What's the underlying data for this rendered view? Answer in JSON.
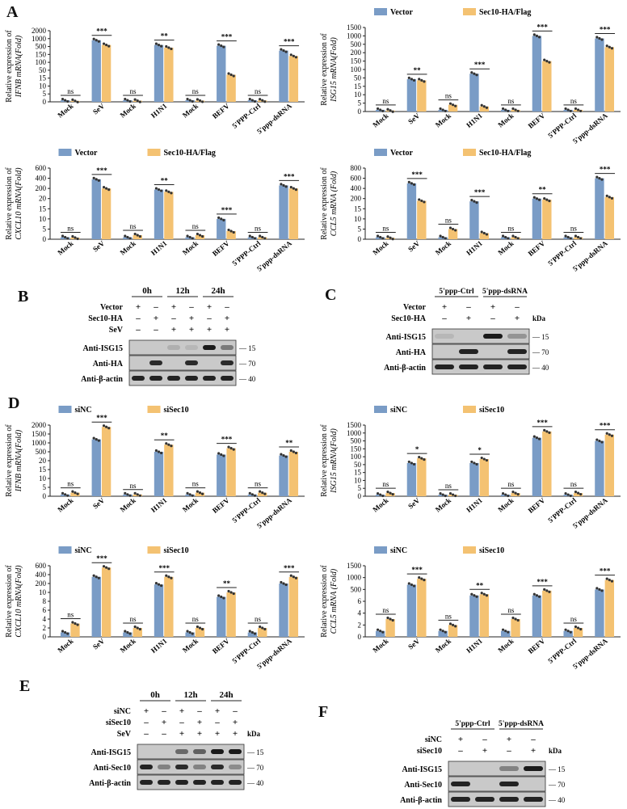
{
  "colors": {
    "blue": "#7a9cc6",
    "orange": "#f4c272",
    "axis": "#222",
    "band": "#1a1a1a",
    "blot": "#c9c9c9"
  },
  "panel_letters": {
    "A": "A",
    "B": "B",
    "C": "C",
    "D": "D",
    "E": "E",
    "F": "F"
  },
  "legend_A": {
    "s1": "Vector",
    "s2": "Sec10-HA/Flag"
  },
  "legend_D": {
    "s1": "siNC",
    "s2": "siSec10"
  },
  "categories": [
    "Mock",
    "SeV",
    "Mock",
    "H1N1",
    "Mock",
    "BEFV",
    "5'PPP-Ctrl",
    "5'ppp-dsRNA"
  ],
  "categories_A_isg15": [
    "Mock",
    "SeV",
    "Mock",
    "H1N1",
    "Mock",
    "BEFV",
    "5'PPP-Ctrl",
    "5'ppp-dsRNA"
  ],
  "chart_data": [
    {
      "id": "A1",
      "type": "bar",
      "series": [
        {
          "name": "Vector",
          "values": [
            1,
            900,
            1,
            600,
            1,
            550,
            1,
            320
          ]
        },
        {
          "name": "Sec10-HA/Flag",
          "values": [
            0.6,
            600,
            0.7,
            450,
            0.8,
            30,
            0.9,
            140
          ]
        }
      ],
      "sig": [
        "ns",
        "***",
        "ns",
        "**",
        "ns",
        "***",
        "ns",
        "***"
      ],
      "ylabel1": "Relative expression of",
      "ylabel2": "IFNB mRNA(Fold)",
      "ticks": [
        "0",
        "5",
        "10",
        "15",
        "50",
        "100",
        "150",
        "500",
        "1000",
        "2000"
      ]
    },
    {
      "id": "A2",
      "type": "bar",
      "series": [
        {
          "name": "Vector",
          "values": [
            1,
            45,
            1,
            75,
            1,
            1000,
            1,
            850
          ]
        },
        {
          "name": "Sec10-HA/Flag",
          "values": [
            0.6,
            40,
            4,
            3,
            1,
            150,
            1,
            400
          ]
        }
      ],
      "sig": [
        "ns",
        "**",
        "ns",
        "***",
        "ns",
        "***",
        "ns",
        "***"
      ],
      "ylabel1": "Relative expression of",
      "ylabel2": "ISG15 mRNA(Fold)",
      "ticks": [
        "0",
        "5",
        "10",
        "15",
        "50",
        "100",
        "150",
        "200",
        "500",
        "1000",
        "1500"
      ]
    },
    {
      "id": "A3",
      "type": "bar",
      "series": [
        {
          "name": "Vector",
          "values": [
            1,
            380,
            1,
            180,
            1,
            10,
            1,
            260
          ]
        },
        {
          "name": "Sec10-HA/Flag",
          "values": [
            0.8,
            200,
            2,
            140,
            2,
            4,
            1,
            200
          ]
        }
      ],
      "sig": [
        "ns",
        "***",
        "ns",
        "**",
        "ns",
        "***",
        "ns",
        "***"
      ],
      "ylabel1": "Relative expression of",
      "ylabel2": "CXCL10 mRNA(Fold)",
      "ticks": [
        "0",
        "5",
        "10",
        "15",
        "20",
        "200",
        "400",
        "600"
      ]
    },
    {
      "id": "A4",
      "type": "bar",
      "series": [
        {
          "name": "Vector",
          "values": [
            1,
            500,
            1,
            150,
            1,
            200,
            1,
            600
          ]
        },
        {
          "name": "Sec10-HA/Flag",
          "values": [
            0.7,
            160,
            5,
            3,
            1,
            180,
            1,
            230
          ]
        }
      ],
      "sig": [
        "ns",
        "***",
        "ns",
        "***",
        "ns",
        "**",
        "ns",
        "***"
      ],
      "ylabel1": "Relative expression of",
      "ylabel2": "CCL5 mRNA (Fold)",
      "ticks": [
        "0",
        "5",
        "10",
        "15",
        "200",
        "400",
        "600",
        "800"
      ]
    },
    {
      "id": "D1",
      "type": "bar",
      "series": [
        {
          "name": "siNC",
          "values": [
            1,
            1200,
            1,
            500,
            1,
            350,
            1,
            300
          ]
        },
        {
          "name": "siSec10",
          "values": [
            2,
            1900,
            1,
            900,
            2,
            700,
            2,
            500
          ]
        }
      ],
      "sig": [
        "ns",
        "***",
        "ns",
        "**",
        "ns",
        "***",
        "ns",
        "**"
      ],
      "ylabel1": "Relative expression of",
      "ylabel2": "IFNB mRNA(Fold)",
      "ticks": [
        "0",
        "5",
        "10",
        "15",
        "20",
        "500",
        "1000",
        "1500",
        "2000"
      ]
    },
    {
      "id": "D2",
      "type": "bar",
      "series": [
        {
          "name": "siNC",
          "values": [
            1,
            60,
            1,
            60,
            1,
            700,
            1,
            500
          ]
        },
        {
          "name": "siSec10",
          "values": [
            2,
            90,
            1,
            85,
            2,
            1100,
            2,
            900
          ]
        }
      ],
      "sig": [
        "ns",
        "*",
        "ns",
        "*",
        "ns",
        "***",
        "ns",
        "***"
      ],
      "ylabel1": "Relative expression of",
      "ylabel2": "ISG15 mRNA(Fold)",
      "ticks": [
        "0",
        "5",
        "10",
        "15",
        "50",
        "100",
        "150",
        "500",
        "1000",
        "1500"
      ]
    },
    {
      "id": "D3",
      "type": "bar",
      "series": [
        {
          "name": "siNC",
          "values": [
            1,
            350,
            1,
            180,
            1,
            9,
            1,
            200
          ]
        },
        {
          "name": "siSec10",
          "values": [
            3,
            560,
            2,
            350,
            2,
            10,
            2,
            350
          ]
        }
      ],
      "sig": [
        "ns",
        "***",
        "ns",
        "***",
        "ns",
        "**",
        "ns",
        "***"
      ],
      "ylabel1": "Relative expression of",
      "ylabel2": "CXCL10 mRNA(Fold)",
      "ticks": [
        "0",
        "2",
        "4",
        "6",
        "8",
        "10",
        "200",
        "400",
        "600"
      ]
    },
    {
      "id": "D4",
      "type": "bar",
      "series": [
        {
          "name": "siNC",
          "values": [
            1,
            700,
            1,
            250,
            1,
            250,
            1,
            500
          ]
        },
        {
          "name": "siSec10",
          "values": [
            3,
            950,
            2,
            300,
            3,
            450,
            1.5,
            900
          ]
        }
      ],
      "sig": [
        "ns",
        "***",
        "ns",
        "**",
        "ns",
        "***",
        "ns",
        "***"
      ],
      "ylabel1": "Relative expression of",
      "ylabel2": "CCL5 mRNA (Fold)",
      "ticks": [
        "0",
        "2",
        "4",
        "6",
        "500",
        "1000",
        "1500"
      ]
    }
  ],
  "blotB": {
    "times": [
      "0h",
      "12h",
      "24h"
    ],
    "rows": [
      {
        "label": "Vector",
        "marks": [
          "+",
          "–",
          "+",
          "–",
          "+",
          "–"
        ]
      },
      {
        "label": "Sec10-HA",
        "marks": [
          "–",
          "+",
          "–",
          "+",
          "–",
          "+"
        ]
      },
      {
        "label": "SeV",
        "marks": [
          "–",
          "–",
          "+",
          "+",
          "+",
          "+"
        ]
      }
    ],
    "bands": [
      {
        "label": "Anti-ISG15",
        "kda": "15"
      },
      {
        "label": "Anti-HA",
        "kda": "70"
      },
      {
        "label": "Anti-β-actin",
        "kda": "40"
      }
    ]
  },
  "blotC": {
    "groups": [
      "5'ppp-Ctrl",
      "5'ppp-dsRNA"
    ],
    "rows": [
      {
        "label": "Vector",
        "marks": [
          "+",
          "–",
          "+",
          "–"
        ]
      },
      {
        "label": "Sec10-HA",
        "marks": [
          "–",
          "+",
          "–",
          "+"
        ]
      }
    ],
    "kda": "kDa",
    "bands": [
      {
        "label": "Anti-ISG15",
        "kda": "15"
      },
      {
        "label": "Anti-HA",
        "kda": "70"
      },
      {
        "label": "Anti-β-actin",
        "kda": "40"
      }
    ]
  },
  "blotE": {
    "times": [
      "0h",
      "12h",
      "24h"
    ],
    "rows": [
      {
        "label": "siNC",
        "marks": [
          "+",
          "–",
          "+",
          "–",
          "+",
          "–"
        ]
      },
      {
        "label": "siSec10",
        "marks": [
          "–",
          "+",
          "–",
          "+",
          "–",
          "+"
        ]
      },
      {
        "label": "SeV",
        "marks": [
          "–",
          "–",
          "+",
          "+",
          "+",
          "+"
        ]
      }
    ],
    "kda": "kDa",
    "bands": [
      {
        "label": "Anti-ISG15",
        "kda": "15"
      },
      {
        "label": "Anti-Sec10",
        "kda": "70"
      },
      {
        "label": "Anti-β-actin",
        "kda": "40"
      }
    ]
  },
  "blotF": {
    "groups": [
      "5'ppp-Ctrl",
      "5'ppp-dsRNA"
    ],
    "rows": [
      {
        "label": "siNC",
        "marks": [
          "+",
          "–",
          "+",
          "–"
        ]
      },
      {
        "label": "siSec10",
        "marks": [
          "–",
          "+",
          "–",
          "+"
        ]
      }
    ],
    "kda": "kDa",
    "bands": [
      {
        "label": "Anti-ISG15",
        "kda": "15"
      },
      {
        "label": "Anti-Sec10",
        "kda": "70"
      },
      {
        "label": "Anti-β-actin",
        "kda": "40"
      }
    ]
  }
}
